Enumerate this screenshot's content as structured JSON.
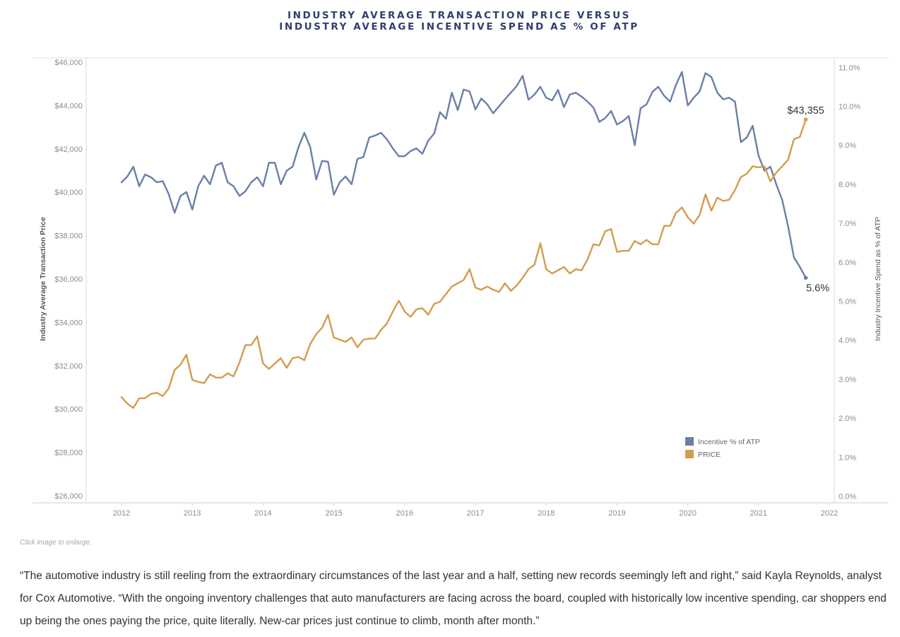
{
  "chart_data": {
    "type": "line",
    "title_lines": [
      "INDUSTRY AVERAGE TRANSACTION PRICE VERSUS",
      "INDUSTRY AVERAGE INCENTIVE SPEND AS % OF ATP"
    ],
    "ylabel_left": "Industry Average Transaction Price",
    "ylabel_right": "Industry Incentive Spend as % of ATP",
    "x_ticks": [
      "2012",
      "2013",
      "2014",
      "2015",
      "2016",
      "2017",
      "2018",
      "2019",
      "2020",
      "2021",
      "2022"
    ],
    "xlim": [
      2012,
      2022
    ],
    "y_left_ticks": [
      "$26,000",
      "$28,000",
      "$30,000",
      "$32,000",
      "$34,000",
      "$36,000",
      "$38,000",
      "$40,000",
      "$42,000",
      "$44,000",
      "$46,000"
    ],
    "y_right_ticks": [
      "0.0%",
      "1.0%",
      "2.0%",
      "3.0%",
      "4.0%",
      "5.0%",
      "6.0%",
      "7.0%",
      "8.0%",
      "9.0%",
      "10.0%",
      "11.0%"
    ],
    "legend": [
      "Incentive % of ATP",
      "PRICE"
    ],
    "legend_position": "bottom-right",
    "x_start": "2012-01",
    "series": [
      {
        "name": "Incentive % of ATP",
        "axis": "right",
        "color": "#6a7fa8",
        "values": [
          8.05,
          8.2,
          8.45,
          7.95,
          8.25,
          8.18,
          8.05,
          8.08,
          7.75,
          7.27,
          7.7,
          7.8,
          7.35,
          7.95,
          8.22,
          8.0,
          8.48,
          8.55,
          8.05,
          7.95,
          7.7,
          7.82,
          8.05,
          8.18,
          7.95,
          8.55,
          8.55,
          8.0,
          8.35,
          8.45,
          8.95,
          9.32,
          8.95,
          8.12,
          8.6,
          8.58,
          7.73,
          8.05,
          8.2,
          8.0,
          8.65,
          8.7,
          9.2,
          9.25,
          9.32,
          9.15,
          8.92,
          8.72,
          8.72,
          8.85,
          8.92,
          8.78,
          9.12,
          9.3,
          9.85,
          9.68,
          10.35,
          9.9,
          10.43,
          10.38,
          9.92,
          10.2,
          10.05,
          9.82,
          10.0,
          10.18,
          10.35,
          10.52,
          10.78,
          10.17,
          10.3,
          10.5,
          10.22,
          10.15,
          10.42,
          9.98,
          10.3,
          10.35,
          10.25,
          10.12,
          9.97,
          9.6,
          9.7,
          9.88,
          9.53,
          9.62,
          9.75,
          9.0,
          9.95,
          10.05,
          10.37,
          10.5,
          10.27,
          10.12,
          10.55,
          10.88,
          10.02,
          10.22,
          10.38,
          10.85,
          10.75,
          10.35,
          10.18,
          10.22,
          10.12,
          9.08,
          9.2,
          9.5,
          8.73,
          8.35,
          8.45,
          8.0,
          7.6,
          6.92,
          6.12,
          5.88,
          5.6
        ]
      },
      {
        "name": "PRICE",
        "axis": "left",
        "color": "#d39c4e",
        "values": [
          30550,
          30250,
          30050,
          30500,
          30500,
          30700,
          30750,
          30600,
          30950,
          31800,
          32050,
          32500,
          31350,
          31250,
          31200,
          31600,
          31450,
          31450,
          31650,
          31500,
          32150,
          32950,
          32950,
          33350,
          32100,
          31850,
          32100,
          32350,
          31900,
          32350,
          32400,
          32250,
          33000,
          33450,
          33750,
          34350,
          33300,
          33200,
          33100,
          33300,
          32850,
          33200,
          33250,
          33250,
          33650,
          33950,
          34500,
          35000,
          34500,
          34250,
          34600,
          34650,
          34350,
          34850,
          34950,
          35300,
          35650,
          35800,
          35950,
          36450,
          35600,
          35500,
          35650,
          35500,
          35400,
          35800,
          35450,
          35700,
          36050,
          36450,
          36650,
          37650,
          36450,
          36250,
          36400,
          36550,
          36250,
          36450,
          36400,
          36900,
          37600,
          37550,
          38200,
          38300,
          37250,
          37300,
          37300,
          37750,
          37600,
          37800,
          37600,
          37600,
          38450,
          38450,
          39050,
          39300,
          38850,
          38550,
          38950,
          39900,
          39150,
          39750,
          39600,
          39650,
          40100,
          40700,
          40850,
          41200,
          41150,
          41200,
          40500,
          40900,
          41200,
          41500,
          42450,
          42550,
          43355
        ]
      }
    ],
    "annotations": {
      "price_last": "$43,355",
      "incentive_last": "5.6%"
    }
  },
  "caption": "Click image to enlarge.",
  "quote": "“The automotive industry is still reeling from the extraordinary circumstances of the last year and a half, setting new records seemingly left and right,” said Kayla Reynolds, analyst for Cox Automotive. “With the ongoing inventory challenges that auto manufacturers are facing across the board, coupled with historically low incentive spending, car shoppers end up being the ones paying the price, quite literally. New-car prices just continue to climb, month after month.”"
}
